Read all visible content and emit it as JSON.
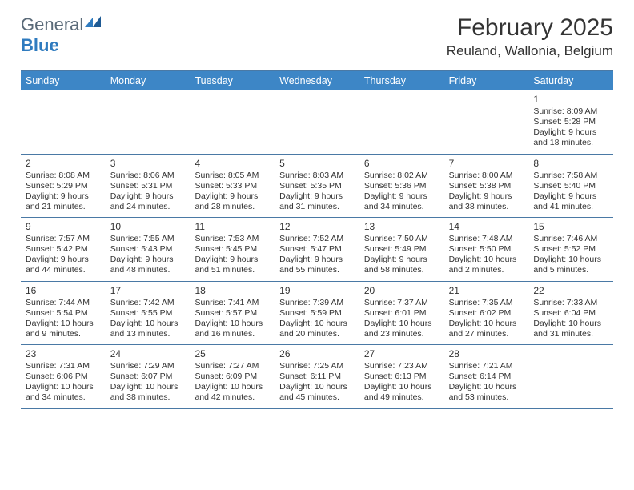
{
  "brand": {
    "word1": "General",
    "word2": "Blue"
  },
  "title": "February 2025",
  "location": "Reuland, Wallonia, Belgium",
  "day_headers": [
    "Sunday",
    "Monday",
    "Tuesday",
    "Wednesday",
    "Thursday",
    "Friday",
    "Saturday"
  ],
  "colors": {
    "header_bg": "#3d86c6",
    "header_text": "#ffffff",
    "rule": "#4a79a5",
    "body_text": "#333333",
    "logo_grey": "#5a6a78",
    "logo_blue": "#2f7bbf"
  },
  "weeks": [
    [
      {
        "day": "",
        "lines": []
      },
      {
        "day": "",
        "lines": []
      },
      {
        "day": "",
        "lines": []
      },
      {
        "day": "",
        "lines": []
      },
      {
        "day": "",
        "lines": []
      },
      {
        "day": "",
        "lines": []
      },
      {
        "day": "1",
        "lines": [
          "Sunrise: 8:09 AM",
          "Sunset: 5:28 PM",
          "Daylight: 9 hours and 18 minutes."
        ]
      }
    ],
    [
      {
        "day": "2",
        "lines": [
          "Sunrise: 8:08 AM",
          "Sunset: 5:29 PM",
          "Daylight: 9 hours and 21 minutes."
        ]
      },
      {
        "day": "3",
        "lines": [
          "Sunrise: 8:06 AM",
          "Sunset: 5:31 PM",
          "Daylight: 9 hours and 24 minutes."
        ]
      },
      {
        "day": "4",
        "lines": [
          "Sunrise: 8:05 AM",
          "Sunset: 5:33 PM",
          "Daylight: 9 hours and 28 minutes."
        ]
      },
      {
        "day": "5",
        "lines": [
          "Sunrise: 8:03 AM",
          "Sunset: 5:35 PM",
          "Daylight: 9 hours and 31 minutes."
        ]
      },
      {
        "day": "6",
        "lines": [
          "Sunrise: 8:02 AM",
          "Sunset: 5:36 PM",
          "Daylight: 9 hours and 34 minutes."
        ]
      },
      {
        "day": "7",
        "lines": [
          "Sunrise: 8:00 AM",
          "Sunset: 5:38 PM",
          "Daylight: 9 hours and 38 minutes."
        ]
      },
      {
        "day": "8",
        "lines": [
          "Sunrise: 7:58 AM",
          "Sunset: 5:40 PM",
          "Daylight: 9 hours and 41 minutes."
        ]
      }
    ],
    [
      {
        "day": "9",
        "lines": [
          "Sunrise: 7:57 AM",
          "Sunset: 5:42 PM",
          "Daylight: 9 hours and 44 minutes."
        ]
      },
      {
        "day": "10",
        "lines": [
          "Sunrise: 7:55 AM",
          "Sunset: 5:43 PM",
          "Daylight: 9 hours and 48 minutes."
        ]
      },
      {
        "day": "11",
        "lines": [
          "Sunrise: 7:53 AM",
          "Sunset: 5:45 PM",
          "Daylight: 9 hours and 51 minutes."
        ]
      },
      {
        "day": "12",
        "lines": [
          "Sunrise: 7:52 AM",
          "Sunset: 5:47 PM",
          "Daylight: 9 hours and 55 minutes."
        ]
      },
      {
        "day": "13",
        "lines": [
          "Sunrise: 7:50 AM",
          "Sunset: 5:49 PM",
          "Daylight: 9 hours and 58 minutes."
        ]
      },
      {
        "day": "14",
        "lines": [
          "Sunrise: 7:48 AM",
          "Sunset: 5:50 PM",
          "Daylight: 10 hours and 2 minutes."
        ]
      },
      {
        "day": "15",
        "lines": [
          "Sunrise: 7:46 AM",
          "Sunset: 5:52 PM",
          "Daylight: 10 hours and 5 minutes."
        ]
      }
    ],
    [
      {
        "day": "16",
        "lines": [
          "Sunrise: 7:44 AM",
          "Sunset: 5:54 PM",
          "Daylight: 10 hours and 9 minutes."
        ]
      },
      {
        "day": "17",
        "lines": [
          "Sunrise: 7:42 AM",
          "Sunset: 5:55 PM",
          "Daylight: 10 hours and 13 minutes."
        ]
      },
      {
        "day": "18",
        "lines": [
          "Sunrise: 7:41 AM",
          "Sunset: 5:57 PM",
          "Daylight: 10 hours and 16 minutes."
        ]
      },
      {
        "day": "19",
        "lines": [
          "Sunrise: 7:39 AM",
          "Sunset: 5:59 PM",
          "Daylight: 10 hours and 20 minutes."
        ]
      },
      {
        "day": "20",
        "lines": [
          "Sunrise: 7:37 AM",
          "Sunset: 6:01 PM",
          "Daylight: 10 hours and 23 minutes."
        ]
      },
      {
        "day": "21",
        "lines": [
          "Sunrise: 7:35 AM",
          "Sunset: 6:02 PM",
          "Daylight: 10 hours and 27 minutes."
        ]
      },
      {
        "day": "22",
        "lines": [
          "Sunrise: 7:33 AM",
          "Sunset: 6:04 PM",
          "Daylight: 10 hours and 31 minutes."
        ]
      }
    ],
    [
      {
        "day": "23",
        "lines": [
          "Sunrise: 7:31 AM",
          "Sunset: 6:06 PM",
          "Daylight: 10 hours and 34 minutes."
        ]
      },
      {
        "day": "24",
        "lines": [
          "Sunrise: 7:29 AM",
          "Sunset: 6:07 PM",
          "Daylight: 10 hours and 38 minutes."
        ]
      },
      {
        "day": "25",
        "lines": [
          "Sunrise: 7:27 AM",
          "Sunset: 6:09 PM",
          "Daylight: 10 hours and 42 minutes."
        ]
      },
      {
        "day": "26",
        "lines": [
          "Sunrise: 7:25 AM",
          "Sunset: 6:11 PM",
          "Daylight: 10 hours and 45 minutes."
        ]
      },
      {
        "day": "27",
        "lines": [
          "Sunrise: 7:23 AM",
          "Sunset: 6:13 PM",
          "Daylight: 10 hours and 49 minutes."
        ]
      },
      {
        "day": "28",
        "lines": [
          "Sunrise: 7:21 AM",
          "Sunset: 6:14 PM",
          "Daylight: 10 hours and 53 minutes."
        ]
      },
      {
        "day": "",
        "lines": []
      }
    ]
  ]
}
